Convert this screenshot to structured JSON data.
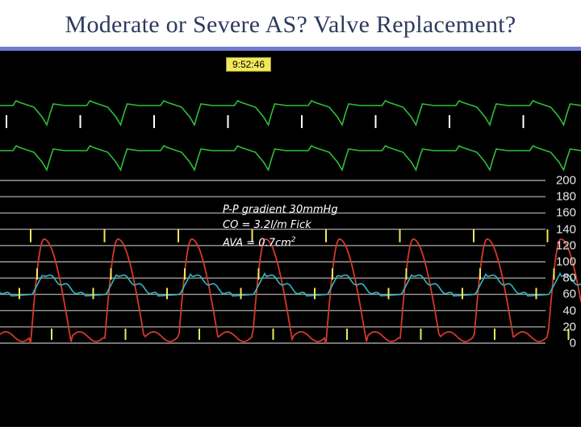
{
  "slide": {
    "title": "Moderate or Severe AS? Valve Replacement?"
  },
  "monitor": {
    "timestamp": "9:52:46",
    "scale_ticks": [
      "200",
      "180",
      "160",
      "140",
      "120",
      "100",
      "80",
      "60",
      "40",
      "20",
      "0"
    ],
    "annotation": {
      "gradient_line": "P-P gradient 30mmHg",
      "co_line": "CO = 3.2l/m Fick",
      "ava_prefix": "AVA = 0.7cm",
      "ava_superscript": "2"
    },
    "colors": {
      "ecg": "#2fbf3a",
      "aortic_pressure": "#d23a2a",
      "lv_pressure": "#35b6c4",
      "markers": "#f2e85a",
      "ecg_markers": "#ffffff",
      "title": "#2e3a5c",
      "title_rule": "#6f7bd1"
    }
  }
}
